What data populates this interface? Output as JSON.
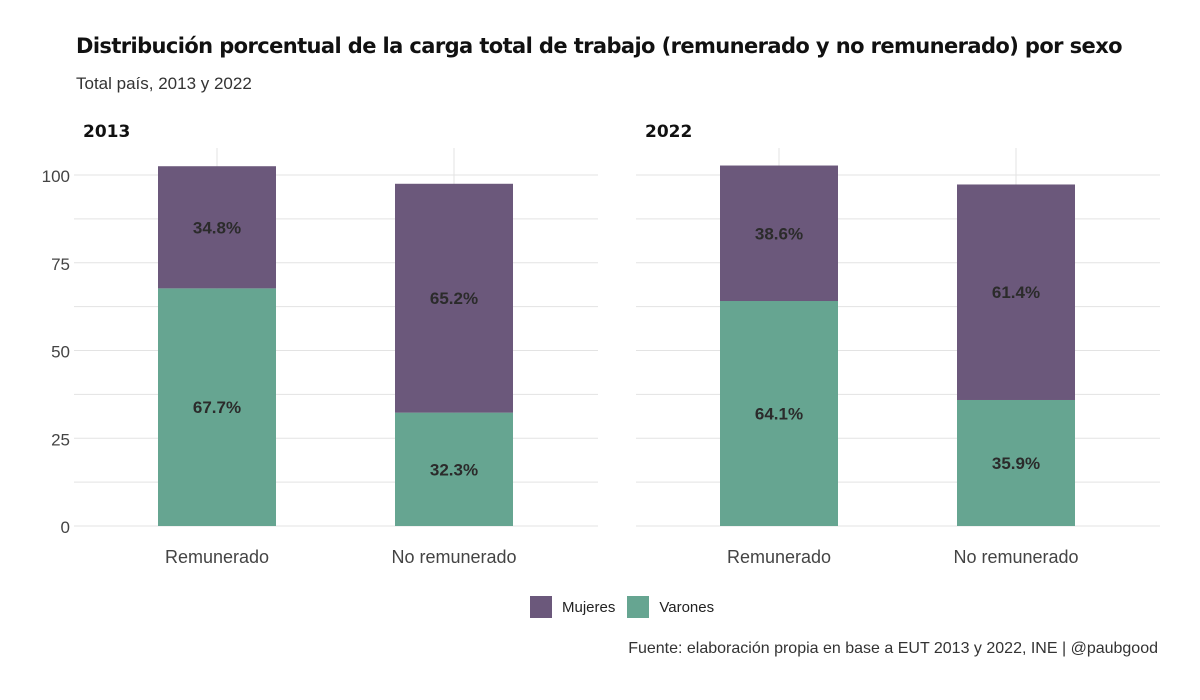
{
  "title": "Distribución porcentual de la carga total de trabajo (remunerado y no remunerado) por sexo",
  "subtitle": "Total país, 2013 y 2022",
  "caption": "Fuente: elaboración propia en base a EUT 2013 y 2022, INE | @paubgood",
  "colors": {
    "Mujeres": "#6b587b",
    "Varones": "#66a591",
    "grid": "#e3e3e3",
    "label": "#2b2b2b"
  },
  "chart_data": {
    "type": "bar",
    "stacked": true,
    "ylim": [
      0,
      100
    ],
    "yticks": [
      0,
      25,
      50,
      75,
      100
    ],
    "grid": true,
    "legend_position": "bottom",
    "legend": [
      "Mujeres",
      "Varones"
    ],
    "panels": [
      {
        "title": "2013",
        "categories": [
          "Remunerado",
          "No remunerado"
        ],
        "series": [
          {
            "name": "Varones",
            "values": [
              67.7,
              32.3
            ],
            "labels": [
              "67.7%",
              "32.3%"
            ]
          },
          {
            "name": "Mujeres",
            "values": [
              34.8,
              65.2
            ],
            "labels": [
              "34.8%",
              "65.2%"
            ]
          }
        ]
      },
      {
        "title": "2022",
        "categories": [
          "Remunerado",
          "No remunerado"
        ],
        "series": [
          {
            "name": "Varones",
            "values": [
              64.1,
              35.9
            ],
            "labels": [
              "64.1%",
              "35.9%"
            ]
          },
          {
            "name": "Mujeres",
            "values": [
              38.6,
              61.4
            ],
            "labels": [
              "38.6%",
              "61.4%"
            ]
          }
        ]
      }
    ]
  }
}
